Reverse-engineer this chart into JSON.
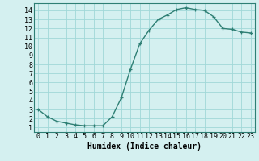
{
  "x": [
    0,
    1,
    2,
    3,
    4,
    5,
    6,
    7,
    8,
    9,
    10,
    11,
    12,
    13,
    14,
    15,
    16,
    17,
    18,
    19,
    20,
    21,
    22,
    23
  ],
  "y": [
    3.0,
    2.2,
    1.7,
    1.5,
    1.3,
    1.2,
    1.2,
    1.2,
    2.2,
    4.3,
    7.5,
    10.3,
    11.8,
    13.0,
    13.5,
    14.1,
    14.3,
    14.1,
    14.0,
    13.3,
    12.0,
    11.9,
    11.6,
    11.5
  ],
  "line_color": "#2e7f74",
  "marker": "+",
  "bg_color": "#d4f0f0",
  "grid_color": "#a0d8d8",
  "xlabel": "Humidex (Indice chaleur)",
  "xlim": [
    -0.5,
    23.5
  ],
  "ylim": [
    0.5,
    14.8
  ],
  "xticks": [
    0,
    1,
    2,
    3,
    4,
    5,
    6,
    7,
    8,
    9,
    10,
    11,
    12,
    13,
    14,
    15,
    16,
    17,
    18,
    19,
    20,
    21,
    22,
    23
  ],
  "yticks": [
    1,
    2,
    3,
    4,
    5,
    6,
    7,
    8,
    9,
    10,
    11,
    12,
    13,
    14
  ],
  "xlabel_fontsize": 7,
  "tick_fontsize": 6
}
